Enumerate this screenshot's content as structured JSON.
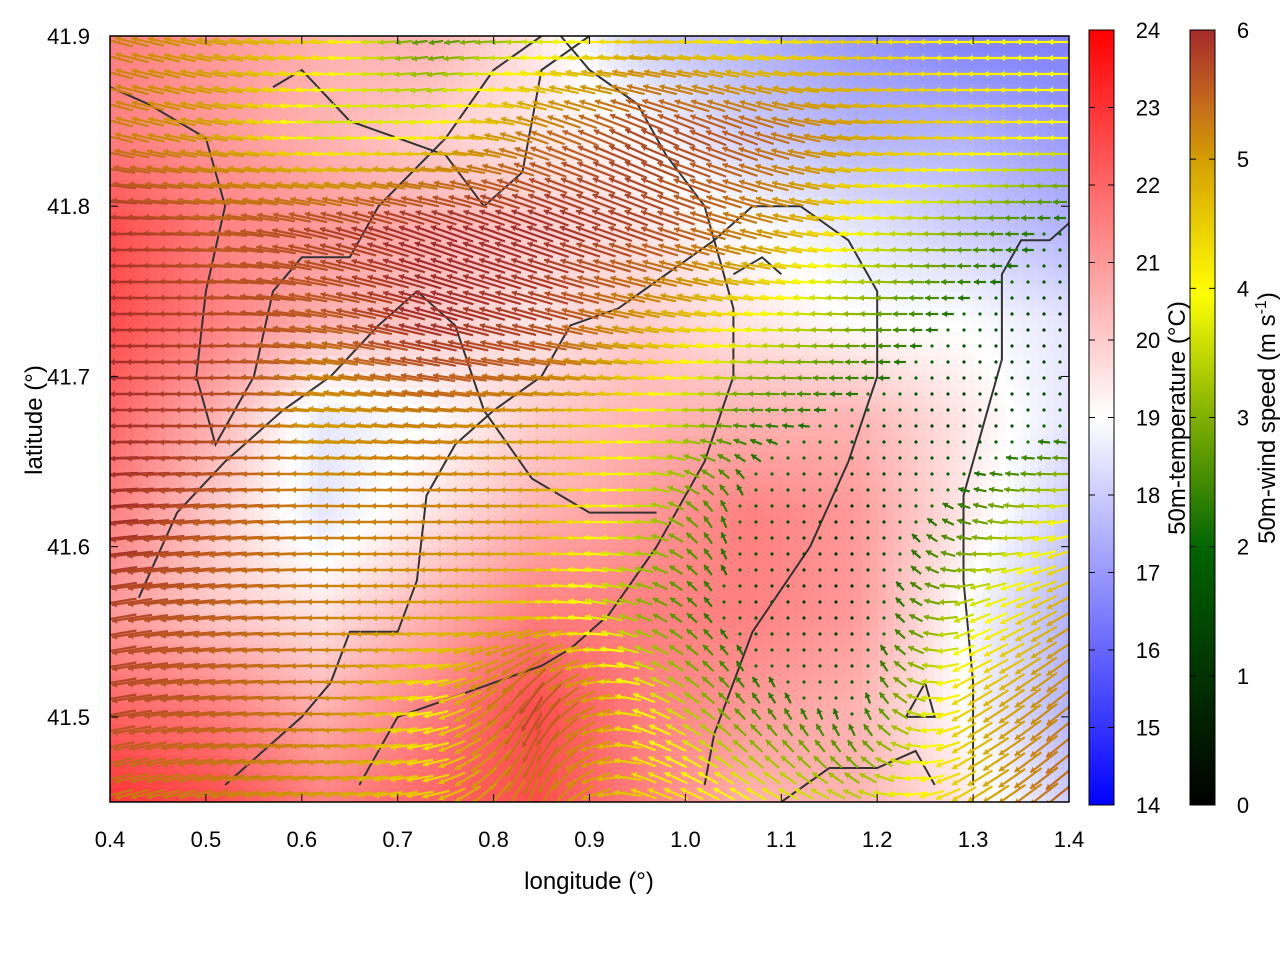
{
  "chart_data": {
    "type": "heatmap",
    "subtype": "wind-vector field over temperature map",
    "xlabel": "longitude (°)",
    "ylabel": "latitude (°)",
    "xlim": [
      0.4,
      1.4
    ],
    "ylim": [
      41.45,
      41.9
    ],
    "x_ticks": [
      "0.4",
      "0.5",
      "0.6",
      "0.7",
      "0.8",
      "0.9",
      "1.0",
      "1.1",
      "1.2",
      "1.3",
      "1.4"
    ],
    "y_ticks": [
      "41.5",
      "41.6",
      "41.7",
      "41.8",
      "41.9"
    ],
    "temperature_colorbar": {
      "label": "50m-temperature (°C)",
      "range": [
        14,
        24
      ],
      "ticks": [
        "14",
        "15",
        "16",
        "17",
        "18",
        "19",
        "20",
        "21",
        "22",
        "23",
        "24"
      ],
      "colors": [
        "#0000ff",
        "#ffffff",
        "#ff0000"
      ]
    },
    "wind_colorbar": {
      "label_main": "50m-wind speed (m s",
      "label_sup": "-1",
      "label_end": ")",
      "range": [
        0,
        6
      ],
      "ticks": [
        "0",
        "1",
        "2",
        "3",
        "4",
        "5",
        "6"
      ],
      "colors": [
        "#000000",
        "#006400",
        "#80b000",
        "#ffff00",
        "#d4a000",
        "#c06020",
        "#a52a2a"
      ]
    },
    "temperature_field": {
      "description_grid": "coarse 10x9 grid of 50m-temperature (°C), rows from north (41.9) to south (41.45), columns from west (0.4) to east (1.4)",
      "values": [
        [
          21.5,
          21.0,
          20.5,
          20.5,
          19.5,
          18.0,
          17.5,
          17.0,
          16.5,
          16.5
        ],
        [
          21.5,
          21.0,
          20.5,
          20.0,
          19.5,
          19.0,
          18.0,
          17.5,
          17.5,
          17.0
        ],
        [
          22.5,
          21.5,
          21.0,
          20.5,
          20.0,
          19.5,
          19.0,
          18.5,
          18.0,
          17.5
        ],
        [
          22.5,
          21.5,
          20.5,
          20.0,
          19.5,
          20.0,
          19.5,
          19.0,
          19.0,
          18.5
        ],
        [
          22.0,
          20.5,
          18.5,
          19.0,
          20.0,
          20.5,
          20.5,
          20.5,
          19.5,
          18.5
        ],
        [
          21.5,
          20.0,
          18.5,
          19.5,
          20.5,
          21.0,
          21.5,
          21.0,
          19.5,
          18.0
        ],
        [
          21.0,
          20.0,
          19.5,
          20.5,
          21.5,
          21.5,
          21.5,
          21.0,
          19.0,
          17.5
        ],
        [
          22.0,
          21.5,
          20.5,
          21.5,
          22.5,
          21.5,
          21.0,
          20.5,
          19.0,
          17.5
        ],
        [
          23.0,
          22.5,
          21.5,
          22.0,
          22.5,
          21.5,
          20.5,
          20.5,
          19.5,
          18.0
        ]
      ]
    },
    "wind_field": {
      "description_grid": "coarse 9x10 grid of 50m wind: speed (m s-1) and direction the arrows point, degrees clockwise from east (180 = westward)",
      "speed": [
        [
          4.5,
          4.0,
          3.5,
          1.5,
          2.5,
          3.5,
          3.0,
          3.5,
          3.0,
          3.0
        ],
        [
          4.5,
          4.0,
          2.5,
          3.0,
          4.5,
          5.5,
          5.0,
          4.0,
          3.5,
          3.0
        ],
        [
          6.0,
          5.0,
          5.5,
          6.0,
          6.0,
          5.5,
          4.5,
          3.0,
          2.0,
          1.0
        ],
        [
          6.0,
          5.5,
          5.0,
          6.0,
          5.5,
          4.0,
          3.0,
          2.0,
          1.0,
          0.5
        ],
        [
          6.0,
          5.5,
          4.0,
          4.5,
          4.0,
          3.0,
          1.5,
          1.0,
          0.5,
          1.0
        ],
        [
          6.0,
          5.0,
          4.5,
          4.5,
          4.0,
          2.5,
          1.0,
          0.5,
          1.5,
          3.0
        ],
        [
          5.5,
          5.0,
          4.5,
          4.0,
          3.5,
          2.0,
          0.8,
          0.5,
          2.5,
          4.0
        ],
        [
          5.5,
          5.0,
          4.5,
          3.0,
          5.5,
          3.0,
          1.5,
          1.0,
          3.5,
          4.5
        ],
        [
          4.5,
          4.5,
          4.0,
          3.5,
          4.5,
          3.5,
          3.0,
          2.5,
          3.5,
          5.0
        ]
      ],
      "direction_deg": [
        [
          195,
          190,
          185,
          170,
          180,
          180,
          185,
          180,
          180,
          180
        ],
        [
          195,
          190,
          180,
          175,
          200,
          205,
          200,
          185,
          180,
          180
        ],
        [
          180,
          185,
          195,
          200,
          200,
          200,
          195,
          185,
          180,
          180
        ],
        [
          180,
          180,
          190,
          195,
          195,
          190,
          185,
          180,
          180,
          180
        ],
        [
          180,
          180,
          185,
          185,
          180,
          180,
          180,
          180,
          180,
          190
        ],
        [
          175,
          175,
          180,
          180,
          180,
          180,
          270,
          270,
          200,
          170
        ],
        [
          170,
          175,
          180,
          180,
          180,
          200,
          250,
          270,
          160,
          150
        ],
        [
          170,
          175,
          180,
          170,
          120,
          200,
          230,
          260,
          150,
          140
        ],
        [
          165,
          170,
          175,
          170,
          110,
          200,
          210,
          200,
          150,
          140
        ]
      ]
    },
    "coastline_contours": [
      [
        [
          0.4,
          41.87
        ],
        [
          0.44,
          41.86
        ],
        [
          0.5,
          41.84
        ],
        [
          0.52,
          41.8
        ],
        [
          0.5,
          41.75
        ],
        [
          0.49,
          41.7
        ],
        [
          0.51,
          41.66
        ],
        [
          0.55,
          41.7
        ],
        [
          0.57,
          41.75
        ],
        [
          0.6,
          41.77
        ],
        [
          0.65,
          41.77
        ],
        [
          0.68,
          41.8
        ],
        [
          0.75,
          41.84
        ],
        [
          0.8,
          41.88
        ],
        [
          0.85,
          41.9
        ]
      ],
      [
        [
          0.57,
          41.87
        ],
        [
          0.6,
          41.88
        ],
        [
          0.65,
          41.85
        ],
        [
          0.7,
          41.84
        ],
        [
          0.75,
          41.83
        ],
        [
          0.79,
          41.8
        ],
        [
          0.83,
          41.82
        ],
        [
          0.85,
          41.88
        ],
        [
          0.9,
          41.9
        ]
      ],
      [
        [
          0.43,
          41.57
        ],
        [
          0.47,
          41.62
        ],
        [
          0.52,
          41.65
        ],
        [
          0.58,
          41.68
        ],
        [
          0.63,
          41.7
        ],
        [
          0.68,
          41.73
        ],
        [
          0.72,
          41.75
        ],
        [
          0.76,
          41.73
        ],
        [
          0.79,
          41.68
        ],
        [
          0.84,
          41.64
        ],
        [
          0.9,
          41.62
        ],
        [
          0.97,
          41.62
        ]
      ],
      [
        [
          0.52,
          41.46
        ],
        [
          0.56,
          41.48
        ],
        [
          0.6,
          41.5
        ],
        [
          0.63,
          41.52
        ],
        [
          0.65,
          41.55
        ],
        [
          0.7,
          41.55
        ],
        [
          0.72,
          41.58
        ],
        [
          0.73,
          41.63
        ],
        [
          0.76,
          41.66
        ],
        [
          0.8,
          41.68
        ],
        [
          0.85,
          41.7
        ],
        [
          0.88,
          41.73
        ],
        [
          0.93,
          41.74
        ],
        [
          0.98,
          41.76
        ],
        [
          1.03,
          41.78
        ],
        [
          1.07,
          41.8
        ],
        [
          1.12,
          41.8
        ],
        [
          1.17,
          41.78
        ],
        [
          1.2,
          41.75
        ],
        [
          1.2,
          41.7
        ],
        [
          1.17,
          41.65
        ],
        [
          1.13,
          41.6
        ],
        [
          1.07,
          41.55
        ],
        [
          1.03,
          41.49
        ],
        [
          1.02,
          41.46
        ]
      ],
      [
        [
          0.66,
          41.46
        ],
        [
          0.7,
          41.5
        ],
        [
          0.75,
          41.51
        ],
        [
          0.8,
          41.52
        ],
        [
          0.85,
          41.53
        ],
        [
          0.88,
          41.54
        ],
        [
          0.92,
          41.56
        ],
        [
          0.97,
          41.6
        ],
        [
          1.02,
          41.65
        ],
        [
          1.05,
          41.7
        ],
        [
          1.05,
          41.74
        ],
        [
          1.02,
          41.8
        ],
        [
          0.98,
          41.83
        ],
        [
          0.95,
          41.86
        ],
        [
          0.9,
          41.88
        ],
        [
          0.87,
          41.9
        ]
      ],
      [
        [
          1.3,
          41.46
        ],
        [
          1.3,
          41.52
        ],
        [
          1.29,
          41.58
        ],
        [
          1.29,
          41.63
        ],
        [
          1.31,
          41.67
        ],
        [
          1.33,
          41.71
        ],
        [
          1.33,
          41.76
        ],
        [
          1.35,
          41.78
        ],
        [
          1.38,
          41.78
        ],
        [
          1.4,
          41.79
        ]
      ],
      [
        [
          1.1,
          41.45
        ],
        [
          1.15,
          41.47
        ],
        [
          1.2,
          41.47
        ],
        [
          1.24,
          41.48
        ],
        [
          1.26,
          41.46
        ]
      ],
      [
        [
          1.25,
          41.52
        ],
        [
          1.23,
          41.5
        ],
        [
          1.26,
          41.5
        ],
        [
          1.25,
          41.52
        ]
      ],
      [
        [
          1.05,
          41.76
        ],
        [
          1.08,
          41.77
        ],
        [
          1.1,
          41.76
        ]
      ]
    ]
  }
}
